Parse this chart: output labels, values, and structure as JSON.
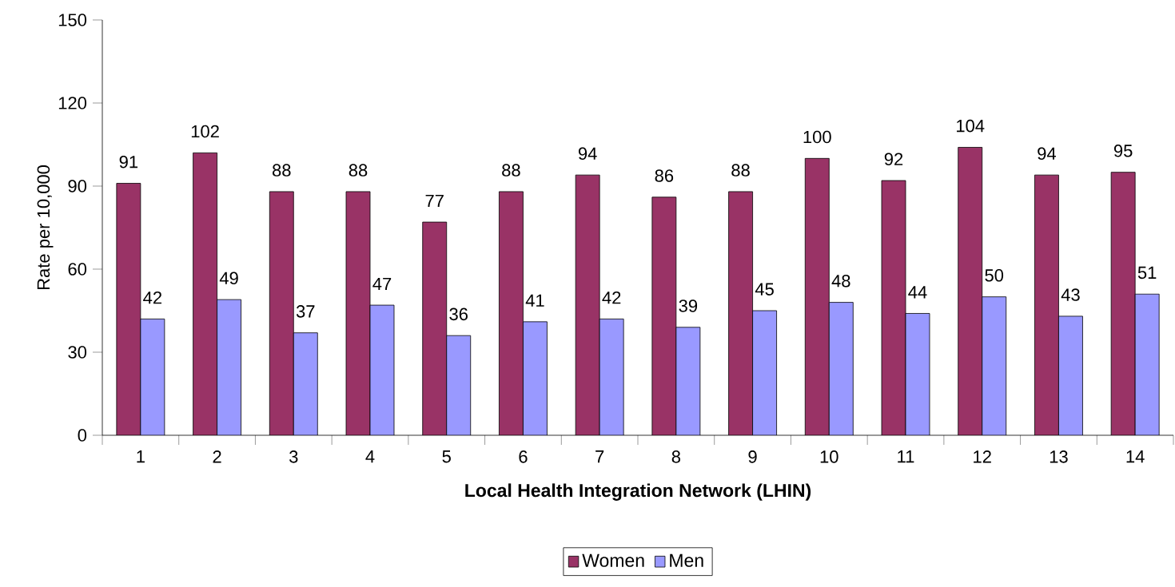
{
  "chart_data": {
    "type": "bar",
    "xlabel": "Local Health Integration Network (LHIN)",
    "ylabel": "Rate per 10,000",
    "categories": [
      "1",
      "2",
      "3",
      "4",
      "5",
      "6",
      "7",
      "8",
      "9",
      "10",
      "11",
      "12",
      "13",
      "14"
    ],
    "series": [
      {
        "name": "Women",
        "color": "#993366",
        "values": [
          91,
          102,
          88,
          88,
          77,
          88,
          94,
          86,
          88,
          100,
          92,
          104,
          94,
          95
        ]
      },
      {
        "name": "Men",
        "color": "#9999ff",
        "values": [
          42,
          49,
          37,
          47,
          36,
          41,
          42,
          39,
          45,
          48,
          44,
          50,
          43,
          51
        ]
      }
    ],
    "ylim": [
      0,
      150
    ],
    "yticks": [
      0,
      30,
      60,
      90,
      120,
      150
    ],
    "data_labels": true,
    "grid": false,
    "legend": "bottom"
  }
}
